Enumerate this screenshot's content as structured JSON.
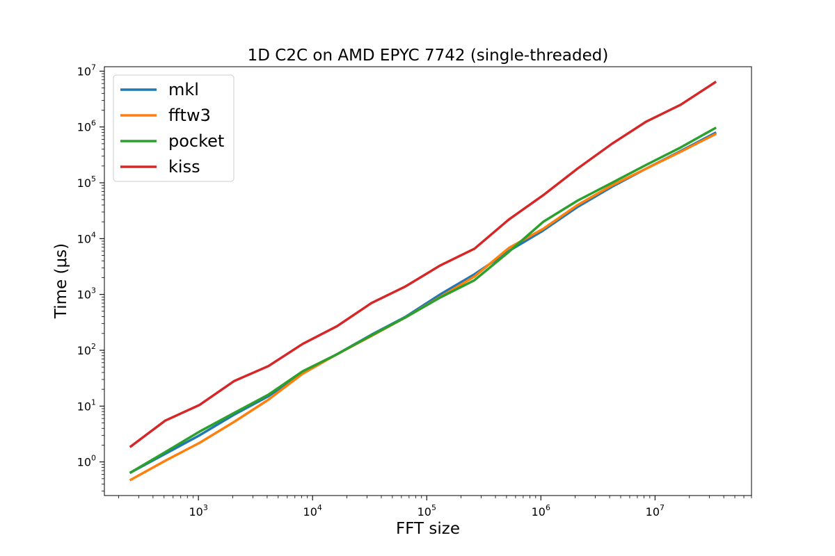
{
  "chart_data": {
    "type": "line",
    "title": "1D C2C on AMD EPYC 7742 (single-threaded)",
    "xlabel": "FFT size",
    "ylabel": "Time (μs)",
    "xscale": "log",
    "yscale": "log",
    "xlim": [
      150,
      70000000
    ],
    "ylim": [
      0.25,
      12000000
    ],
    "x_ticks": [
      {
        "base": "10",
        "exp": "3",
        "value": 1000
      },
      {
        "base": "10",
        "exp": "4",
        "value": 10000
      },
      {
        "base": "10",
        "exp": "5",
        "value": 100000
      },
      {
        "base": "10",
        "exp": "6",
        "value": 1000000
      },
      {
        "base": "10",
        "exp": "7",
        "value": 10000000
      }
    ],
    "y_ticks": [
      {
        "base": "10",
        "exp": "0",
        "value": 1
      },
      {
        "base": "10",
        "exp": "1",
        "value": 10
      },
      {
        "base": "10",
        "exp": "2",
        "value": 100
      },
      {
        "base": "10",
        "exp": "3",
        "value": 1000
      },
      {
        "base": "10",
        "exp": "4",
        "value": 10000
      },
      {
        "base": "10",
        "exp": "5",
        "value": 100000
      },
      {
        "base": "10",
        "exp": "6",
        "value": 1000000
      },
      {
        "base": "10",
        "exp": "7",
        "value": 10000000
      }
    ],
    "legend_position": "top-left",
    "x": [
      256,
      512,
      1024,
      2048,
      4096,
      8192,
      16384,
      32768,
      65536,
      131072,
      262144,
      524288,
      1048576,
      2097152,
      4194304,
      8388608,
      16777216,
      33554432
    ],
    "series": [
      {
        "name": "mkl",
        "color": "#1f77b4",
        "values": [
          0.65,
          1.4,
          3.0,
          7.0,
          15,
          40,
          85,
          190,
          400,
          1000,
          2300,
          6000,
          14000,
          37000,
          85000,
          180000,
          370000,
          780000
        ]
      },
      {
        "name": "fftw3",
        "color": "#ff7f0e",
        "values": [
          0.48,
          1.05,
          2.2,
          5.2,
          13,
          38,
          85,
          180,
          390,
          900,
          2100,
          6800,
          15000,
          40000,
          90000,
          180000,
          360000,
          740000
        ]
      },
      {
        "name": "pocket",
        "color": "#2ca02c",
        "values": [
          0.65,
          1.5,
          3.5,
          7.5,
          16,
          42,
          85,
          185,
          390,
          880,
          1800,
          5800,
          20000,
          48000,
          100000,
          210000,
          430000,
          950000
        ]
      },
      {
        "name": "kiss",
        "color": "#d62728",
        "values": [
          1.9,
          5.5,
          10.5,
          28,
          52,
          130,
          270,
          700,
          1400,
          3300,
          6600,
          22000,
          60000,
          180000,
          500000,
          1250000,
          2500000,
          6300000
        ]
      }
    ]
  }
}
